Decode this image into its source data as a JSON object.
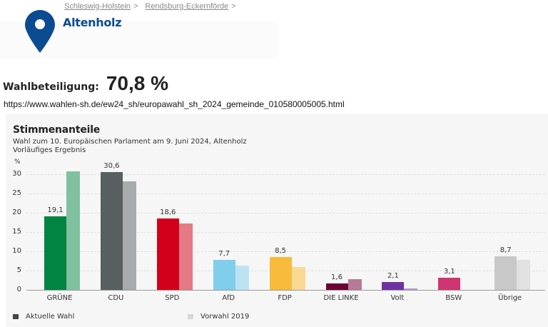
{
  "breadcrumb": [
    {
      "label": "Schleswig-Holstein",
      "sep": ">"
    },
    {
      "label": "Rendsburg-Eckernförde",
      "sep": ">"
    }
  ],
  "place": {
    "icon": "map-pin-icon",
    "title": "Altenholz"
  },
  "turnout": {
    "label": "Wahlbeteiligung:",
    "value": "70,8 %"
  },
  "url_text": "https://www.wahlen-sh.de/ew24_sh/europawahl_sh_2024_gemeinde_010580005005.html",
  "colors": {
    "pin": "#0b4b92",
    "title": "#0b4b92",
    "panel_bg": "#f6f6f6"
  },
  "chart_data": {
    "type": "bar",
    "title": "Stimmenanteile",
    "subtitle": "Wahl zum 10. Europäischen Parlament am 9. Juni 2024, Altenholz",
    "note": "Vorläufiges Ergebnis",
    "xlabel": "",
    "ylabel": "%",
    "ylim": [
      0,
      30
    ],
    "yticks": [
      0,
      5,
      10,
      15,
      20,
      25,
      30
    ],
    "grid": true,
    "legend_position": "bottom",
    "categories": [
      "GRÜNE",
      "CDU",
      "SPD",
      "AfD",
      "FDP",
      "DIE LINKE",
      "Volt",
      "BSW",
      "Übrige"
    ],
    "series": [
      {
        "name": "Aktuelle Wahl",
        "values": [
          19.1,
          30.6,
          18.6,
          7.7,
          8.5,
          1.6,
          2.1,
          3.1,
          8.7
        ],
        "labels": [
          "19,1",
          "30,6",
          "18,6",
          "7,7",
          "8,5",
          "1,6",
          "2,1",
          "3,1",
          "8,7"
        ],
        "colors": [
          "#008442",
          "#575f61",
          "#d2001a",
          "#80cdec",
          "#f8bb3c",
          "#6e0033",
          "#7031a0",
          "#cf3671",
          "#c8c8c8"
        ]
      },
      {
        "name": "Vorwahl 2019",
        "values": [
          30.7,
          28.2,
          17.2,
          6.3,
          5.9,
          2.8,
          0.4,
          null,
          7.7
        ],
        "colors": [
          "#7fc1a0",
          "#a7abab",
          "#e37a85",
          "#bde3f3",
          "#fad995",
          "#b67a97",
          "#b597cf",
          null,
          "#e1e1e1"
        ]
      }
    ],
    "legend": [
      {
        "label": "Aktuelle Wahl",
        "color": "#444444"
      },
      {
        "label": "Vorwahl 2019",
        "color": "#d8d8d8"
      }
    ]
  }
}
